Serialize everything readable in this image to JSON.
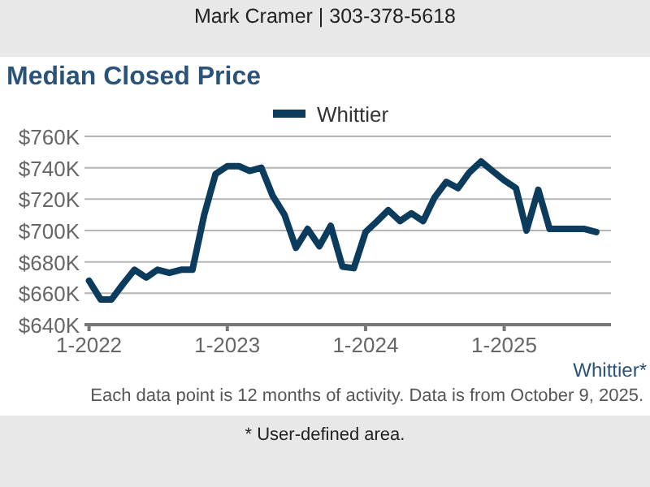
{
  "chart_data": {
    "type": "line",
    "title": "Median Closed Price",
    "annotations": [
      "Mark Cramer | 303-378-5618",
      "Whittier*",
      "Each data point is 12 months of activity. Data is from October 9, 2025.",
      "* User-defined area."
    ],
    "x": [
      "2022-01",
      "2022-02",
      "2022-03",
      "2022-04",
      "2022-05",
      "2022-06",
      "2022-07",
      "2022-08",
      "2022-09",
      "2022-10",
      "2022-11",
      "2022-12",
      "2023-01",
      "2023-02",
      "2023-03",
      "2023-04",
      "2023-05",
      "2023-06",
      "2023-07",
      "2023-08",
      "2023-09",
      "2023-10",
      "2023-11",
      "2023-12",
      "2024-01",
      "2024-02",
      "2024-03",
      "2024-04",
      "2024-05",
      "2024-06",
      "2024-07",
      "2024-08",
      "2024-09",
      "2024-10",
      "2024-11",
      "2024-12",
      "2025-01",
      "2025-02",
      "2025-03",
      "2025-04",
      "2025-05",
      "2025-06",
      "2025-07",
      "2025-08",
      "2025-09"
    ],
    "series": [
      {
        "name": "Whittier",
        "color": "#0b3c5d",
        "values": [
          668,
          656,
          656,
          666,
          675,
          670,
          675,
          673,
          675,
          675,
          710,
          736,
          741,
          741,
          738,
          740,
          722,
          710,
          689,
          701,
          690,
          703,
          677,
          676,
          699,
          706,
          713,
          706,
          711,
          706,
          721,
          731,
          727,
          737,
          744,
          738,
          732,
          727,
          700,
          726,
          701,
          701,
          701,
          701,
          699
        ]
      }
    ],
    "xlim": [
      "2021-12-20",
      "2025-10-10"
    ],
    "xticks": [
      {
        "value": "2022-01",
        "label": "1-2022"
      },
      {
        "value": "2023-01",
        "label": "1-2023"
      },
      {
        "value": "2024-01",
        "label": "1-2024"
      },
      {
        "value": "2025-01",
        "label": "1-2025"
      }
    ],
    "ylim": [
      640,
      760
    ],
    "yticks": [
      {
        "value": 640,
        "label": "$640K"
      },
      {
        "value": 660,
        "label": "$660K"
      },
      {
        "value": 680,
        "label": "$680K"
      },
      {
        "value": 700,
        "label": "$700K"
      },
      {
        "value": 720,
        "label": "$720K"
      },
      {
        "value": 740,
        "label": "$740K"
      },
      {
        "value": 760,
        "label": "$760K"
      }
    ],
    "grid": "y",
    "legend": "top",
    "marker": "none",
    "line_style": "solid"
  }
}
